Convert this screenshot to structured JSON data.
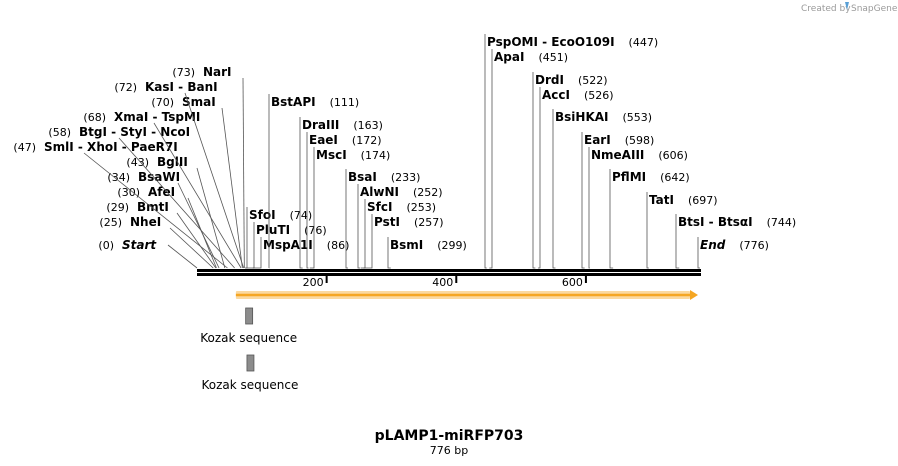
{
  "credit": {
    "text": "Created by",
    "brand": "SnapGene"
  },
  "map": {
    "title": "pLAMP1-miRFP703",
    "length_label": "776 bp",
    "length_bp": 776,
    "ticks": [
      {
        "pos": 200,
        "label": "200"
      },
      {
        "pos": 400,
        "label": "400"
      },
      {
        "pos": 600,
        "label": "600"
      }
    ]
  },
  "sites": [
    {
      "names": [
        "Start"
      ],
      "pos": 0,
      "pos_label": "(0)",
      "terminal": true,
      "numLeft": true
    },
    {
      "names": [
        "NheI"
      ],
      "pos": 25,
      "pos_label": "(25)",
      "numLeft": true
    },
    {
      "names": [
        "BmtI"
      ],
      "pos": 29,
      "pos_label": "(29)",
      "numLeft": true
    },
    {
      "names": [
        "AfeI"
      ],
      "pos": 30,
      "pos_label": "(30)",
      "numLeft": true
    },
    {
      "names": [
        "BsaWI"
      ],
      "pos": 34,
      "pos_label": "(34)",
      "numLeft": true
    },
    {
      "names": [
        "BglII"
      ],
      "pos": 43,
      "pos_label": "(43)",
      "numLeft": true
    },
    {
      "names": [
        "SmlI",
        "XhoI",
        "PaeR7I"
      ],
      "pos": 47,
      "pos_label": "(47)",
      "numLeft": true
    },
    {
      "names": [
        "BtgI",
        "StyI",
        "NcoI"
      ],
      "pos": 58,
      "pos_label": "(58)",
      "numLeft": true
    },
    {
      "names": [
        "XmaI",
        "TspMI"
      ],
      "pos": 68,
      "pos_label": "(68)",
      "numLeft": true
    },
    {
      "names": [
        "SmaI"
      ],
      "pos": 70,
      "pos_label": "(70)",
      "numLeft": true
    },
    {
      "names": [
        "KasI",
        "BanI"
      ],
      "pos": 72,
      "pos_label": "(72)",
      "numLeft": true
    },
    {
      "names": [
        "NarI"
      ],
      "pos": 73,
      "pos_label": "(73)",
      "numLeft": true
    },
    {
      "names": [
        "SfoI"
      ],
      "pos": 74,
      "pos_label": "(74)"
    },
    {
      "names": [
        "PluTI"
      ],
      "pos": 76,
      "pos_label": "(76)"
    },
    {
      "names": [
        "MspA1I"
      ],
      "pos": 86,
      "pos_label": "(86)"
    },
    {
      "names": [
        "BstAPI"
      ],
      "pos": 111,
      "pos_label": "(111)"
    },
    {
      "names": [
        "DraIII"
      ],
      "pos": 163,
      "pos_label": "(163)"
    },
    {
      "names": [
        "EaeI"
      ],
      "pos": 172,
      "pos_label": "(172)"
    },
    {
      "names": [
        "MscI"
      ],
      "pos": 174,
      "pos_label": "(174)"
    },
    {
      "names": [
        "BsaI"
      ],
      "pos": 233,
      "pos_label": "(233)"
    },
    {
      "names": [
        "AlwNI"
      ],
      "pos": 252,
      "pos_label": "(252)"
    },
    {
      "names": [
        "SfcI"
      ],
      "pos": 253,
      "pos_label": "(253)"
    },
    {
      "names": [
        "PstI"
      ],
      "pos": 257,
      "pos_label": "(257)"
    },
    {
      "names": [
        "BsmI"
      ],
      "pos": 299,
      "pos_label": "(299)"
    },
    {
      "names": [
        "PspOMI",
        "EcoO109I"
      ],
      "pos": 447,
      "pos_label": "(447)"
    },
    {
      "names": [
        "ApaI"
      ],
      "pos": 451,
      "pos_label": "(451)"
    },
    {
      "names": [
        "DrdI"
      ],
      "pos": 522,
      "pos_label": "(522)"
    },
    {
      "names": [
        "AccI"
      ],
      "pos": 526,
      "pos_label": "(526)"
    },
    {
      "names": [
        "BsiHKAI"
      ],
      "pos": 553,
      "pos_label": "(553)"
    },
    {
      "names": [
        "EarI"
      ],
      "pos": 598,
      "pos_label": "(598)"
    },
    {
      "names": [
        "NmeAIII"
      ],
      "pos": 606,
      "pos_label": "(606)"
    },
    {
      "names": [
        "PflMI"
      ],
      "pos": 642,
      "pos_label": "(642)"
    },
    {
      "names": [
        "TatI"
      ],
      "pos": 697,
      "pos_label": "(697)"
    },
    {
      "names": [
        "BtsI",
        "BtsαI"
      ],
      "pos": 744,
      "pos_label": "(744)"
    },
    {
      "names": [
        "End"
      ],
      "pos": 776,
      "pos_label": "(776)",
      "terminal": true
    }
  ],
  "features": [
    {
      "name": "Kozak sequence",
      "start": 55,
      "end": 65
    },
    {
      "name": "Kozak sequence",
      "start": 57,
      "end": 66
    }
  ],
  "orf": {
    "start": 60,
    "end": 776,
    "color": "#f5a623"
  }
}
